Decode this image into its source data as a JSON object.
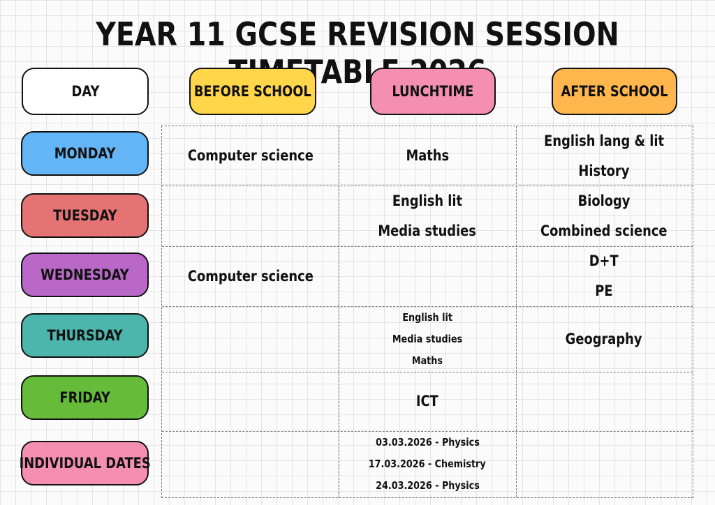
{
  "title": "YEAR 11 GCSE REVISION SESSION TIMETABLE 2026",
  "colors": {
    "day": "#ffffff",
    "before_school": "#ffd54a",
    "lunchtime": "#f48fb1",
    "after_school": "#ffb74d",
    "monday": "#64b5f6",
    "tuesday": "#e57373",
    "wednesday": "#ba68c8",
    "thursday": "#4db6ac",
    "friday": "#66bb3a",
    "individual_dates": "#f48fb1"
  },
  "headers": {
    "day": "DAY",
    "before_school": "BEFORE SCHOOL",
    "lunchtime": "LUNCHTIME",
    "after_school": "AFTER SCHOOL"
  },
  "rows": [
    {
      "day": "MONDAY",
      "before_school": [
        "Computer science"
      ],
      "lunchtime": [
        "Maths"
      ],
      "after_school": [
        "English lang & lit",
        "History"
      ]
    },
    {
      "day": "TUESDAY",
      "before_school": [],
      "lunchtime": [
        "English lit",
        "Media studies"
      ],
      "after_school": [
        "Biology",
        "Combined science"
      ]
    },
    {
      "day": "WEDNESDAY",
      "before_school": [
        "Computer science"
      ],
      "lunchtime": [],
      "after_school": [
        "D+T",
        "PE"
      ]
    },
    {
      "day": "THURSDAY",
      "before_school": [],
      "lunchtime": [
        "English lit",
        "Media studies",
        "Maths"
      ],
      "after_school": [
        "Geography"
      ]
    },
    {
      "day": "FRIDAY",
      "before_school": [],
      "lunchtime": [
        "ICT"
      ],
      "after_school": []
    },
    {
      "day": "INDIVIDUAL DATES",
      "before_school": [],
      "lunchtime": [
        "03.03.2026 - Physics",
        "17.03.2026 - Chemistry",
        "24.03.2026 - Physics"
      ],
      "after_school": []
    }
  ]
}
